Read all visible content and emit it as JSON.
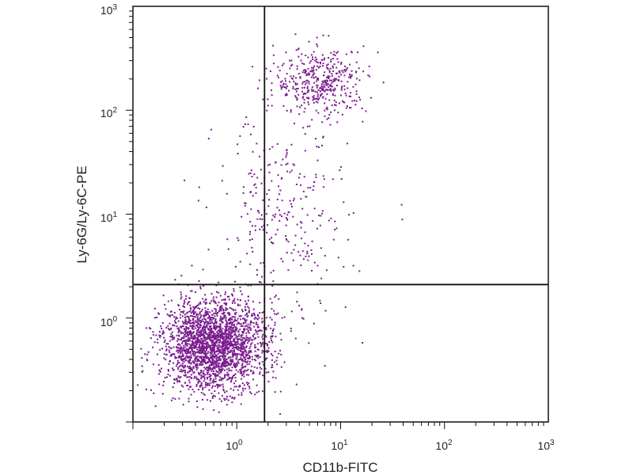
{
  "chart_data": {
    "type": "scatter",
    "xlabel": "CD11b-FITC",
    "ylabel": "Ly-6G/Ly-6C-PE",
    "xscale": "log",
    "yscale": "log",
    "xlim": [
      0.1,
      1000
    ],
    "ylim": [
      0.1,
      1000
    ],
    "x_ticks": [
      {
        "base": "10",
        "exp": "0"
      },
      {
        "base": "10",
        "exp": "1"
      },
      {
        "base": "10",
        "exp": "2"
      },
      {
        "base": "10",
        "exp": "3"
      }
    ],
    "y_ticks": [
      {
        "base": "10",
        "exp": "0"
      },
      {
        "base": "10",
        "exp": "1"
      },
      {
        "base": "10",
        "exp": "2"
      },
      {
        "base": "10",
        "exp": "3"
      }
    ],
    "quadrant_gates": {
      "x": 1.85,
      "y": 2.1
    },
    "point_color": "#7a1c8e",
    "populations": [
      {
        "center": [
          0.6,
          0.55
        ],
        "spread": [
          0.25,
          0.22
        ],
        "count": 2400
      },
      {
        "center": [
          6.5,
          190
        ],
        "spread": [
          0.22,
          0.16
        ],
        "count": 420
      },
      {
        "center": [
          2.8,
          8
        ],
        "spread": [
          0.32,
          0.55
        ],
        "count": 320
      }
    ]
  }
}
